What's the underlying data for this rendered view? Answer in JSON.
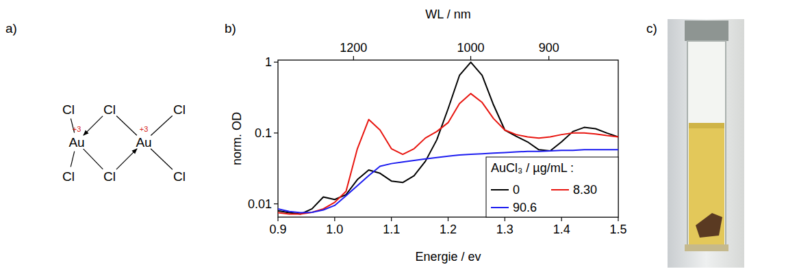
{
  "panels": [
    "a)",
    "b)",
    "c)"
  ],
  "structure": {
    "atoms": [
      {
        "label": "Cl"
      },
      {
        "label": "Cl"
      },
      {
        "label": "Cl"
      },
      {
        "label": "Au",
        "charge": "+3"
      },
      {
        "label": "Au",
        "charge": "+3"
      },
      {
        "label": "Cl"
      },
      {
        "label": "Cl"
      },
      {
        "label": "Cl"
      }
    ]
  },
  "chart_data": {
    "type": "line",
    "log": "y",
    "xlabel": "Energie / ev",
    "ylabel": "norm. OD",
    "x2label": "WL / nm",
    "xlim": [
      0.9,
      1.5
    ],
    "xticks": [
      {
        "value": 0.9,
        "label": "0.9"
      },
      {
        "value": 1.0,
        "label": "1.0"
      },
      {
        "value": 1.1,
        "label": "1.1"
      },
      {
        "value": 1.2,
        "label": "1.2"
      },
      {
        "value": 1.3,
        "label": "1.3"
      },
      {
        "value": 1.4,
        "label": "1.4"
      },
      {
        "value": 1.5,
        "label": "1.5"
      }
    ],
    "x2lim": [
      1377.6,
      826.6
    ],
    "x2ticks": [
      1200,
      1000,
      900
    ],
    "ylim": [
      0.0065,
      1.07
    ],
    "yticks": [
      0.01,
      0.1,
      1
    ],
    "legend": "bottom right",
    "legend_title": "AuCl₃ / µg/mL :",
    "x": [
      0.9,
      0.92,
      0.94,
      0.96,
      0.98,
      1.0,
      1.02,
      1.04,
      1.06,
      1.08,
      1.1,
      1.12,
      1.14,
      1.16,
      1.18,
      1.2,
      1.22,
      1.24,
      1.26,
      1.28,
      1.3,
      1.32,
      1.34,
      1.36,
      1.38,
      1.4,
      1.42,
      1.44,
      1.46,
      1.48,
      1.5
    ],
    "series": [
      {
        "name": "0",
        "color": "#000000",
        "values": [
          0.008,
          0.0075,
          0.0072,
          0.0085,
          0.0125,
          0.0115,
          0.0135,
          0.022,
          0.03,
          0.027,
          0.021,
          0.02,
          0.025,
          0.04,
          0.08,
          0.22,
          0.65,
          1.0,
          0.65,
          0.25,
          0.11,
          0.09,
          0.075,
          0.058,
          0.056,
          0.075,
          0.105,
          0.12,
          0.115,
          0.1,
          0.088
        ]
      },
      {
        "name": "8.30",
        "color": "#e8150f",
        "values": [
          0.0075,
          0.0072,
          0.0072,
          0.0076,
          0.0085,
          0.0105,
          0.015,
          0.06,
          0.155,
          0.11,
          0.06,
          0.05,
          0.06,
          0.085,
          0.105,
          0.14,
          0.26,
          0.36,
          0.27,
          0.16,
          0.11,
          0.095,
          0.088,
          0.085,
          0.088,
          0.095,
          0.1,
          0.1,
          0.097,
          0.092,
          0.088
        ]
      },
      {
        "name": "90.6",
        "color": "#1c1cf0",
        "values": [
          0.0085,
          0.0078,
          0.0075,
          0.0076,
          0.0082,
          0.0095,
          0.013,
          0.018,
          0.025,
          0.034,
          0.037,
          0.039,
          0.041,
          0.043,
          0.045,
          0.047,
          0.049,
          0.05,
          0.051,
          0.052,
          0.053,
          0.054,
          0.055,
          0.055,
          0.056,
          0.057,
          0.057,
          0.058,
          0.058,
          0.058,
          0.058
        ]
      }
    ]
  }
}
